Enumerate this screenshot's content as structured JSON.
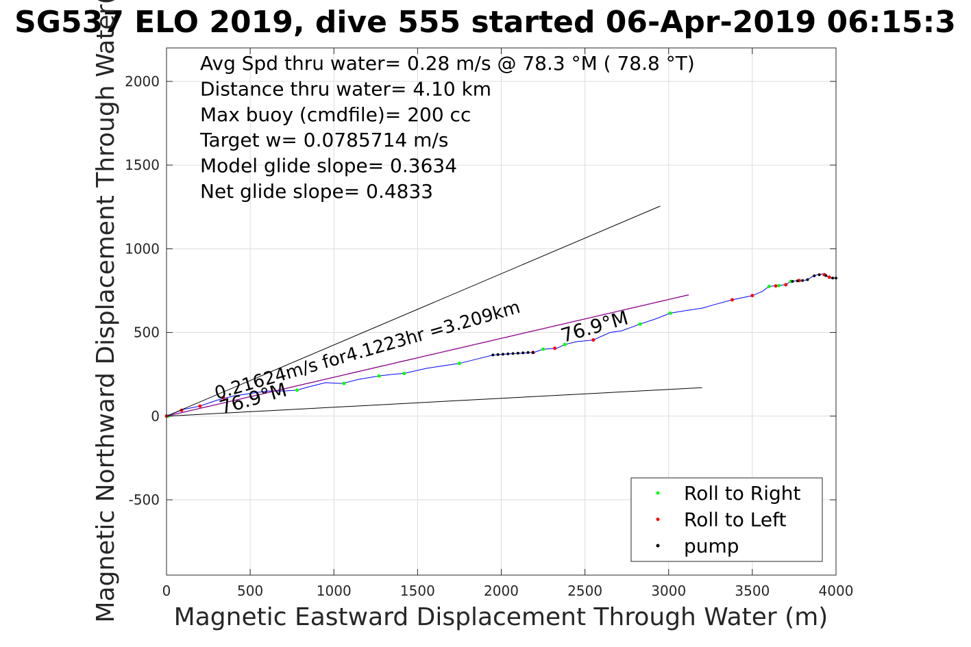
{
  "chart_data": {
    "type": "scatter",
    "title": "SG537 ELO 2019, dive 555 started 06-Apr-2019 06:15:3",
    "xlabel": "Magnetic Eastward Displacement Through Water (m)",
    "ylabel": "Magnetic Northward Displacement Through Water(",
    "xlim": [
      0,
      4000
    ],
    "ylim": [
      -950,
      2200
    ],
    "x_ticks": [
      0,
      500,
      1000,
      1500,
      2000,
      2500,
      3000,
      3500,
      4000
    ],
    "x_tick_labels": [
      "0",
      "500",
      "1000",
      "1500",
      "2000",
      "2500",
      "3000",
      "3500",
      "4000"
    ],
    "y_ticks": [
      -500,
      0,
      500,
      1000,
      1500,
      2000
    ],
    "y_tick_labels": [
      "-500",
      "0",
      "500",
      "1000",
      "1500",
      "2000"
    ],
    "grid": true,
    "legend_position": "bottom-right",
    "info_text": [
      "Avg Spd thru water=  0.28 m/s @  78.3 °M ( 78.8 °T)",
      "Distance thru water=  4.10 km",
      "Max buoy (cmdfile)= 200 cc",
      "Target w= 0.0785714 m/s",
      "Model glide slope= 0.3634",
      "Net glide slope= 0.4833"
    ],
    "annotations": [
      {
        "text": "0.21624m/s for4.1223hr =3.209km",
        "x": 300,
        "y": 100,
        "rotation_deg": -16
      },
      {
        "text": "76.9°M",
        "x": 330,
        "y": 10,
        "rotation_deg": -16
      },
      {
        "text": "76.9°M",
        "x": 2370,
        "y": 440,
        "rotation_deg": -16
      }
    ],
    "series": [
      {
        "name": "track",
        "kind": "line",
        "color": "#0000ff",
        "x": [
          0,
          100,
          200,
          300,
          400,
          500,
          600,
          700,
          780,
          850,
          950,
          1050,
          1150,
          1270,
          1350,
          1420,
          1550,
          1650,
          1750,
          1850,
          1950,
          2050,
          2150,
          2200,
          2250,
          2330,
          2380,
          2450,
          2550,
          2650,
          2720,
          2830,
          2920,
          3010,
          3100,
          3200,
          3270,
          3380,
          3500,
          3560,
          3600,
          3650,
          3700,
          3730,
          3760,
          3800,
          3830,
          3860,
          3890,
          3920,
          3950,
          3970,
          4000
        ],
        "y": [
          0,
          40,
          60,
          95,
          120,
          135,
          150,
          150,
          155,
          175,
          200,
          195,
          220,
          240,
          250,
          255,
          285,
          300,
          315,
          340,
          365,
          372,
          378,
          382,
          400,
          405,
          428,
          445,
          455,
          500,
          510,
          550,
          580,
          615,
          630,
          645,
          665,
          695,
          720,
          745,
          775,
          780,
          785,
          805,
          808,
          810,
          815,
          835,
          845,
          850,
          835,
          825,
          825
        ]
      },
      {
        "name": "Roll to Right",
        "kind": "points",
        "color": "#00ff00",
        "x": [
          10,
          780,
          1060,
          1270,
          1420,
          1750,
          2250,
          2380,
          2830,
          3010,
          3600,
          3660,
          3730
        ],
        "y": [
          0,
          155,
          195,
          240,
          255,
          315,
          400,
          428,
          550,
          615,
          775,
          780,
          805
        ]
      },
      {
        "name": "Roll to Left",
        "kind": "points",
        "color": "#ff0000",
        "x": [
          0,
          90,
          200,
          340,
          2190,
          2320,
          2550,
          3380,
          3500,
          3640,
          3700,
          3780,
          3930,
          3960
        ],
        "y": [
          0,
          35,
          60,
          110,
          380,
          405,
          455,
          695,
          720,
          778,
          785,
          810,
          845,
          830
        ]
      },
      {
        "name": "pump",
        "kind": "points",
        "color": "#000000",
        "x": [
          1950,
          1980,
          2010,
          2040,
          2070,
          2100,
          2130,
          2160,
          2190,
          3740,
          3770,
          3800,
          3830,
          3870,
          3900,
          3940,
          3980,
          4000
        ],
        "y": [
          365,
          368,
          370,
          372,
          374,
          376,
          378,
          380,
          380,
          805,
          808,
          810,
          815,
          838,
          845,
          840,
          825,
          825
        ]
      },
      {
        "name": "glide cone",
        "kind": "line",
        "color": "#000000",
        "x": [
          0,
          2950
        ],
        "y": [
          0,
          1255
        ]
      },
      {
        "name": "glide cone",
        "kind": "line",
        "color": "#000000",
        "x": [
          0,
          3200
        ],
        "y": [
          0,
          170
        ]
      },
      {
        "name": "course",
        "kind": "line",
        "color": "#000000",
        "x": [
          0,
          3120
        ],
        "y": [
          0,
          725
        ]
      },
      {
        "name": "course",
        "kind": "line",
        "color": "#cc00cc",
        "dashed": true,
        "x": [
          0,
          3120
        ],
        "y": [
          0,
          725
        ]
      }
    ],
    "legend": [
      {
        "label": "Roll to Right",
        "color": "#00ff00"
      },
      {
        "label": "Roll to Left",
        "color": "#ff0000"
      },
      {
        "label": "pump",
        "color": "#000000"
      }
    ]
  }
}
